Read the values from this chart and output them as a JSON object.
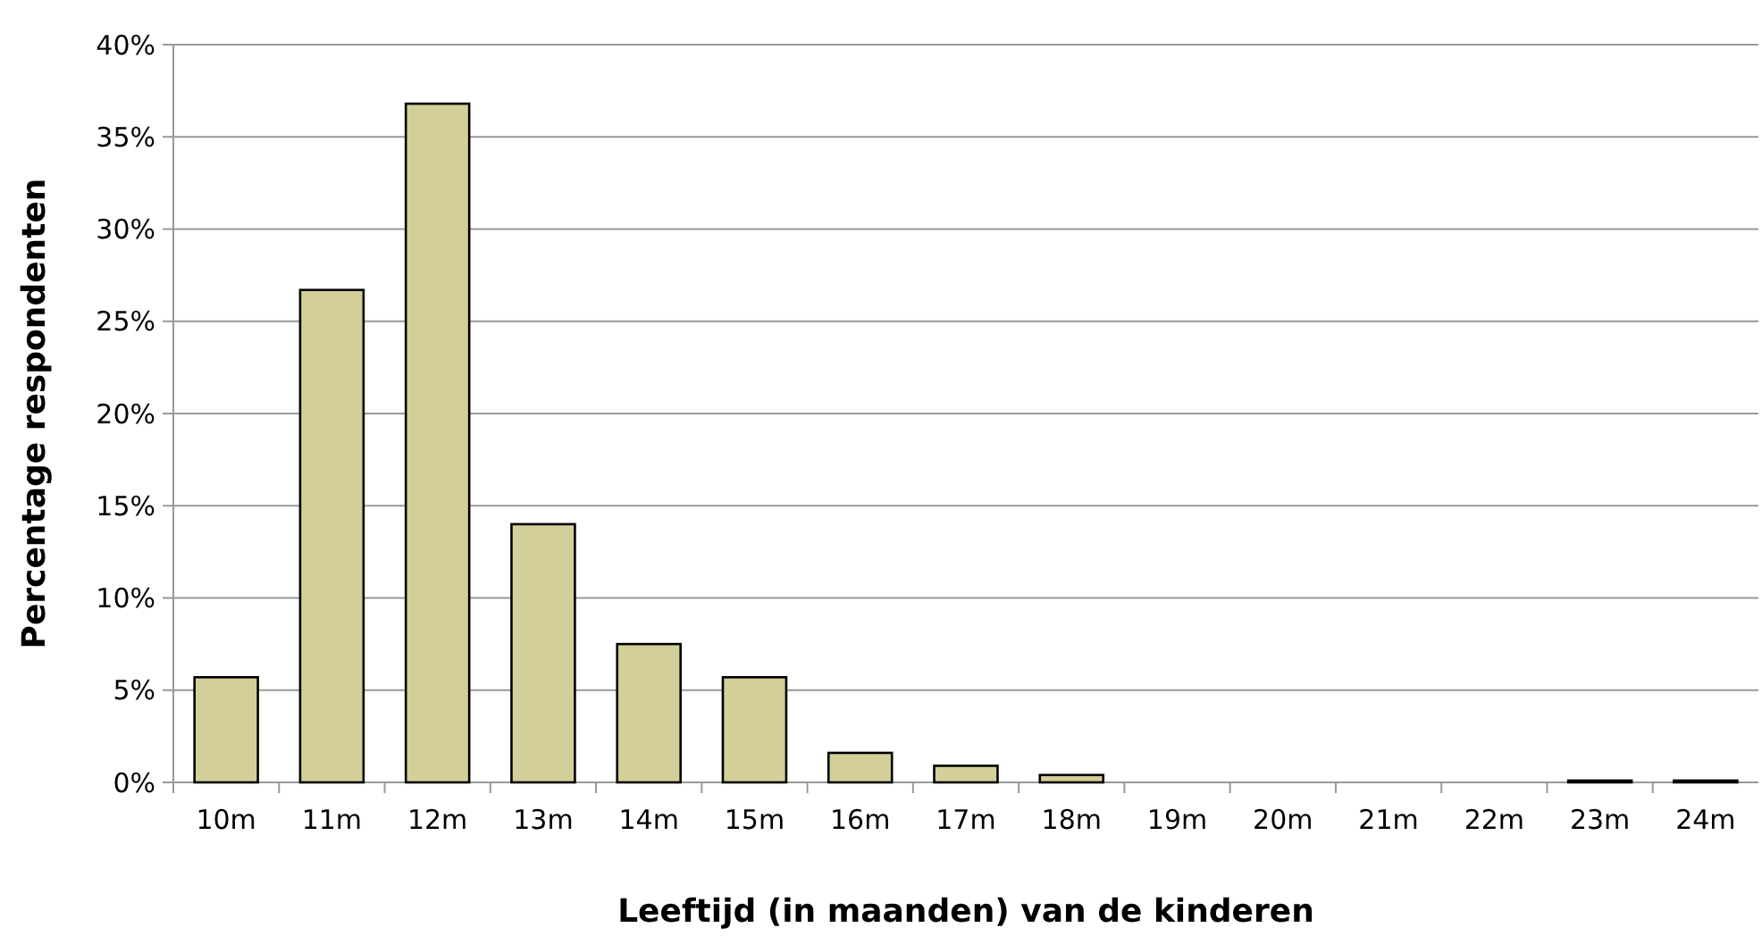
{
  "chart_data": {
    "type": "bar",
    "xlabel": "Leeftijd (in maanden) van de kinderen",
    "ylabel": "Percentage respondenten",
    "categories": [
      "10m",
      "11m",
      "12m",
      "13m",
      "14m",
      "15m",
      "16m",
      "17m",
      "18m",
      "19m",
      "20m",
      "21m",
      "22m",
      "23m",
      "24m"
    ],
    "values": [
      5.7,
      26.7,
      36.8,
      14.0,
      7.5,
      5.7,
      1.6,
      0.9,
      0.4,
      0,
      0,
      0,
      0,
      0.1,
      0.1
    ],
    "color": "#d3cf98",
    "ylim": [
      0,
      40
    ],
    "yticks": [
      {
        "value": 0,
        "label": "0%"
      },
      {
        "value": 5,
        "label": "5%"
      },
      {
        "value": 10,
        "label": "10%"
      },
      {
        "value": 15,
        "label": "15%"
      },
      {
        "value": 20,
        "label": "20%"
      },
      {
        "value": 25,
        "label": "25%"
      },
      {
        "value": 30,
        "label": "30%"
      },
      {
        "value": 35,
        "label": "35%"
      },
      {
        "value": 40,
        "label": "40%"
      }
    ],
    "grid": "y"
  }
}
